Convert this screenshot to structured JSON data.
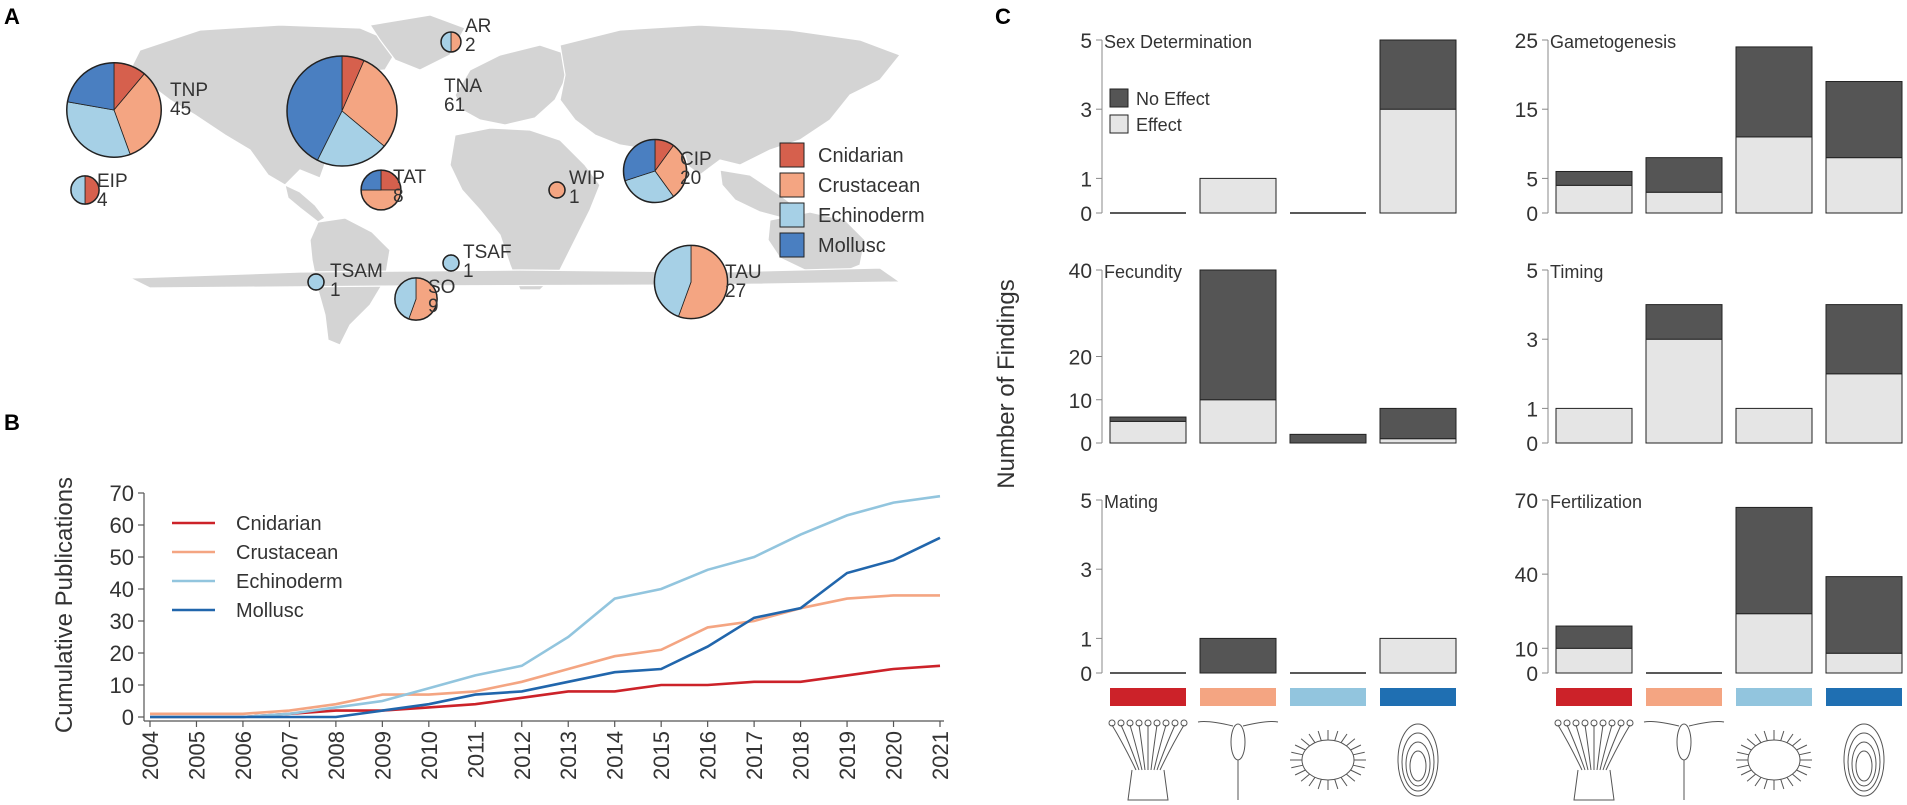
{
  "figure": {
    "panels": {
      "a": "A",
      "b": "B",
      "c": "C"
    }
  },
  "chart_data": [
    {
      "type": "pie",
      "panel": "A",
      "description": "Study locations by region, pie slices by taxon",
      "legend": [
        "Cnidarian",
        "Crustacean",
        "Echinoderm",
        "Mollusc"
      ],
      "regions": [
        {
          "code": "TNP",
          "total": 45,
          "counts": [
            5,
            15,
            15,
            10
          ]
        },
        {
          "code": "TNA",
          "total": 61,
          "counts": [
            4,
            18,
            13,
            26
          ]
        },
        {
          "code": "AR",
          "total": 2,
          "counts": [
            0,
            1,
            1,
            0
          ]
        },
        {
          "code": "EIP",
          "total": 4,
          "counts": [
            2,
            0,
            2,
            0
          ]
        },
        {
          "code": "TAT",
          "total": 8,
          "counts": [
            2,
            4,
            0,
            2
          ]
        },
        {
          "code": "WIP",
          "total": 1,
          "counts": [
            0,
            1,
            0,
            0
          ]
        },
        {
          "code": "CIP",
          "total": 20,
          "counts": [
            2,
            6,
            6,
            6
          ]
        },
        {
          "code": "TSAM",
          "total": 1,
          "counts": [
            0,
            0,
            1,
            0
          ]
        },
        {
          "code": "TSAF",
          "total": 1,
          "counts": [
            0,
            0,
            1,
            0
          ]
        },
        {
          "code": "SO",
          "total": 9,
          "counts": [
            0,
            5,
            4,
            0
          ]
        },
        {
          "code": "TAU",
          "total": 27,
          "counts": [
            0,
            15,
            12,
            0
          ]
        }
      ]
    },
    {
      "type": "line",
      "panel": "B",
      "ylabel": "Cumulative Publications",
      "xlabel": "",
      "x": [
        2004,
        2005,
        2006,
        2007,
        2008,
        2009,
        2010,
        2011,
        2012,
        2013,
        2014,
        2015,
        2016,
        2017,
        2018,
        2019,
        2020,
        2021
      ],
      "ylim": [
        0,
        70
      ],
      "yticks": [
        0,
        10,
        20,
        30,
        40,
        50,
        60,
        70
      ],
      "legend_position": "top-left",
      "series": [
        {
          "name": "Cnidarian",
          "color": "#cc2229",
          "values": [
            0,
            0,
            0,
            1,
            2,
            2,
            3,
            4,
            6,
            8,
            8,
            10,
            10,
            11,
            11,
            13,
            15,
            16
          ]
        },
        {
          "name": "Crustacean",
          "color": "#f4a582",
          "values": [
            1,
            1,
            1,
            2,
            4,
            7,
            7,
            8,
            11,
            15,
            19,
            21,
            28,
            30,
            34,
            37,
            38,
            38
          ]
        },
        {
          "name": "Echinoderm",
          "color": "#92c5de",
          "values": [
            0,
            0,
            0,
            1,
            3,
            5,
            9,
            13,
            16,
            25,
            37,
            40,
            46,
            50,
            57,
            63,
            67,
            69
          ]
        },
        {
          "name": "Mollusc",
          "color": "#2166ac",
          "values": [
            0,
            0,
            0,
            0,
            0,
            2,
            4,
            7,
            8,
            11,
            14,
            15,
            22,
            31,
            34,
            45,
            49,
            56
          ]
        }
      ]
    },
    {
      "type": "bar",
      "panel": "C",
      "stacked": true,
      "ylabel": "Number of Findings",
      "categories": [
        "Cnidarian",
        "Crustacean",
        "Echinoderm",
        "Mollusc"
      ],
      "category_colors": [
        "#cc2229",
        "#f4a582",
        "#92c5de",
        "#1f6fb2"
      ],
      "legend": {
        "no_effect": "No Effect",
        "effect": "Effect"
      },
      "legend_colors": {
        "no_effect": "#555555",
        "effect": "#e5e5e5"
      },
      "subplots": [
        {
          "title": "Sex Determination",
          "ylim": [
            0,
            5
          ],
          "yticks": [
            0,
            1,
            3,
            5
          ],
          "effect": [
            0,
            1,
            0,
            3
          ],
          "no_effect": [
            0,
            0,
            0,
            2
          ]
        },
        {
          "title": "Gametogenesis",
          "ylim": [
            0,
            25
          ],
          "yticks": [
            0,
            5,
            15,
            25
          ],
          "effect": [
            4,
            3,
            11,
            8
          ],
          "no_effect": [
            2,
            5,
            13,
            11
          ]
        },
        {
          "title": "Fecundity",
          "ylim": [
            0,
            40
          ],
          "yticks": [
            0,
            10,
            20,
            40
          ],
          "effect": [
            5,
            10,
            0,
            1
          ],
          "no_effect": [
            1,
            30,
            2,
            7
          ]
        },
        {
          "title": "Timing",
          "ylim": [
            0,
            5
          ],
          "yticks": [
            0,
            1,
            3,
            5
          ],
          "effect": [
            1,
            3,
            1,
            2
          ],
          "no_effect": [
            0,
            1,
            0,
            2
          ]
        },
        {
          "title": "Mating",
          "ylim": [
            0,
            5
          ],
          "yticks": [
            0,
            1,
            3,
            5
          ],
          "effect": [
            0,
            0,
            0,
            1
          ],
          "no_effect": [
            0,
            1,
            0,
            0
          ]
        },
        {
          "title": "Fertilization",
          "ylim": [
            0,
            70
          ],
          "yticks": [
            0,
            10,
            40,
            70
          ],
          "effect": [
            10,
            0,
            24,
            8
          ],
          "no_effect": [
            9,
            0,
            43,
            31
          ]
        }
      ]
    }
  ]
}
